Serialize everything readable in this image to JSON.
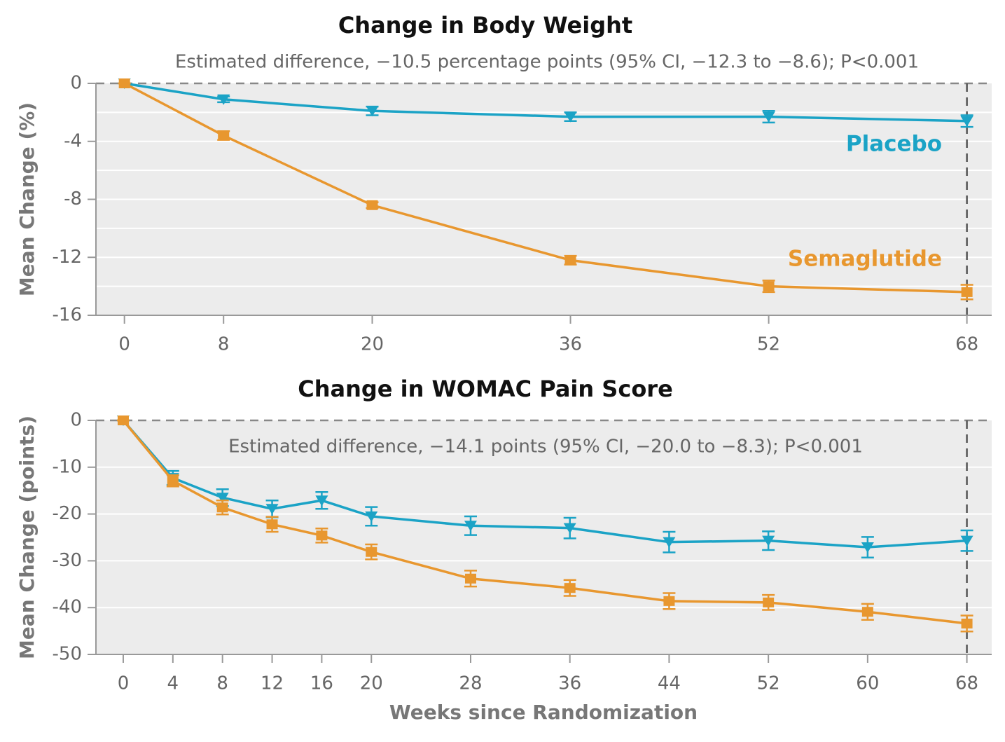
{
  "chart_data": [
    {
      "type": "line",
      "title": "Change in Body Weight",
      "subtitle": "Estimated difference, −10.5 percentage points (95% CI, −12.3 to −8.6); P<0.001",
      "y_label": "Mean Change (%)",
      "x": [
        0,
        8,
        20,
        36,
        52,
        68
      ],
      "series": [
        {
          "name": "Placebo",
          "color": "#1ba3c6",
          "marker": "triangle-down",
          "values": [
            0,
            -1.1,
            -1.9,
            -2.3,
            -2.3,
            -2.6
          ],
          "errors": [
            0,
            0.2,
            0.3,
            0.3,
            0.4,
            0.4
          ]
        },
        {
          "name": "Semaglutide",
          "color": "#e8972f",
          "marker": "square",
          "values": [
            0,
            -3.6,
            -8.4,
            -12.2,
            -14.0,
            -14.4
          ],
          "errors": [
            0,
            0.3,
            0.2,
            0.3,
            0.4,
            0.5
          ]
        }
      ],
      "xlim": [
        -2.3,
        70
      ],
      "xticks": [
        0,
        8,
        20,
        36,
        52,
        68
      ],
      "ylim": [
        -16,
        0
      ],
      "yticks": [
        0,
        -4,
        -8,
        -12,
        -16
      ],
      "grid": true,
      "minor_grid": true
    },
    {
      "type": "line",
      "title": "Change in WOMAC Pain Score",
      "annotation": "Estimated difference, −14.1 points (95% CI, −20.0 to −8.3); P<0.001",
      "y_label": "Mean Change (points)",
      "x_label": "Weeks since Randomization",
      "x": [
        0,
        4,
        8,
        12,
        16,
        20,
        28,
        36,
        44,
        52,
        60,
        68
      ],
      "series": [
        {
          "color": "#1ba3c6",
          "marker": "triangle-down",
          "values": [
            0,
            -12.3,
            -16.5,
            -18.9,
            -17.1,
            -20.5,
            -22.5,
            -23.0,
            -26.0,
            -25.7,
            -27.1,
            -25.7
          ],
          "errors": [
            0,
            1.5,
            1.8,
            1.8,
            1.8,
            2.0,
            2.0,
            2.2,
            2.2,
            2.0,
            2.2,
            2.2
          ]
        },
        {
          "color": "#e8972f",
          "marker": "square",
          "values": [
            0,
            -12.9,
            -18.6,
            -22.2,
            -24.6,
            -28.1,
            -33.8,
            -35.8,
            -38.6,
            -38.9,
            -40.9,
            -43.4
          ],
          "errors": [
            0,
            1.2,
            1.5,
            1.6,
            1.5,
            1.6,
            1.7,
            1.7,
            1.7,
            1.6,
            1.7,
            1.7
          ]
        }
      ],
      "xlim": [
        -2.2,
        70
      ],
      "xticks": [
        0,
        4,
        8,
        12,
        16,
        20,
        28,
        36,
        44,
        52,
        60,
        68
      ],
      "ylim": [
        -50,
        0
      ],
      "yticks": [
        0,
        -10,
        -20,
        -30,
        -40,
        -50
      ],
      "grid": true,
      "minor_grid": false
    }
  ]
}
